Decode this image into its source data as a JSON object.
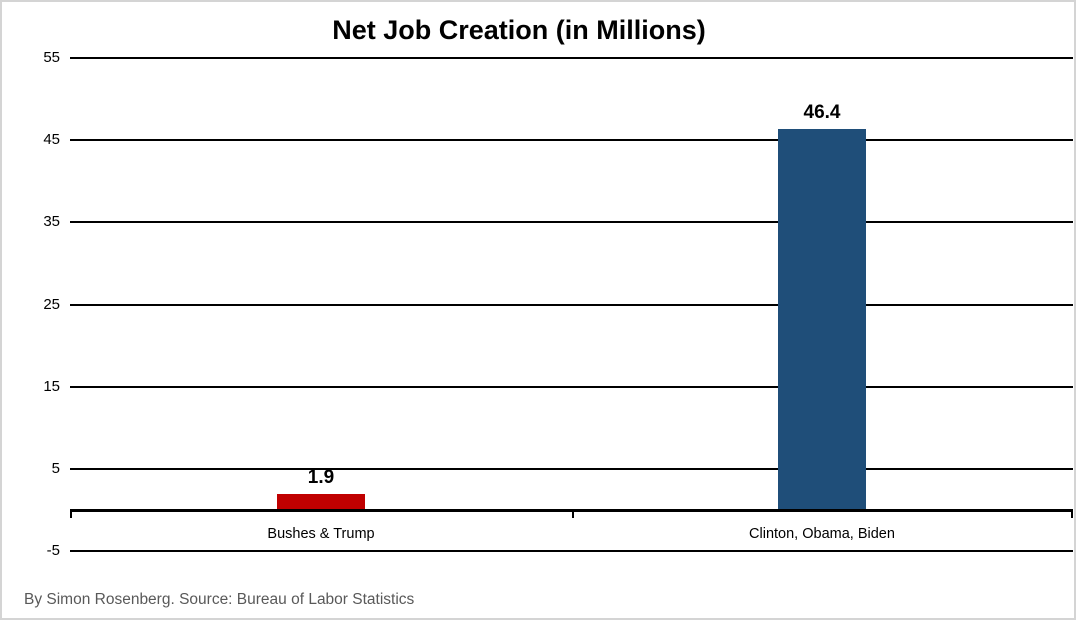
{
  "chart_data": {
    "type": "bar",
    "title": "Net Job Creation (in Millions)",
    "categories": [
      "Bushes & Trump",
      "Clinton, Obama, Biden"
    ],
    "values": [
      1.9,
      46.4
    ],
    "data_labels": [
      "1.9",
      "46.4"
    ],
    "bar_colors": [
      "#C00000",
      "#1F4E79"
    ],
    "yticks": [
      -5,
      5,
      15,
      25,
      35,
      45,
      55
    ],
    "ylim": [
      -5,
      55
    ],
    "baseline_value": 0,
    "grid": "horizontal",
    "legend": "none",
    "xlabel": "",
    "ylabel": "",
    "source_note": "By Simon Rosenberg. Source: Bureau of Labor Statistics"
  },
  "colors": {
    "grid": "#000000",
    "axis": "#000000",
    "title_text": "#000000",
    "source_text": "#595959",
    "frame_border": "#d4d4d4",
    "background": "#ffffff"
  }
}
